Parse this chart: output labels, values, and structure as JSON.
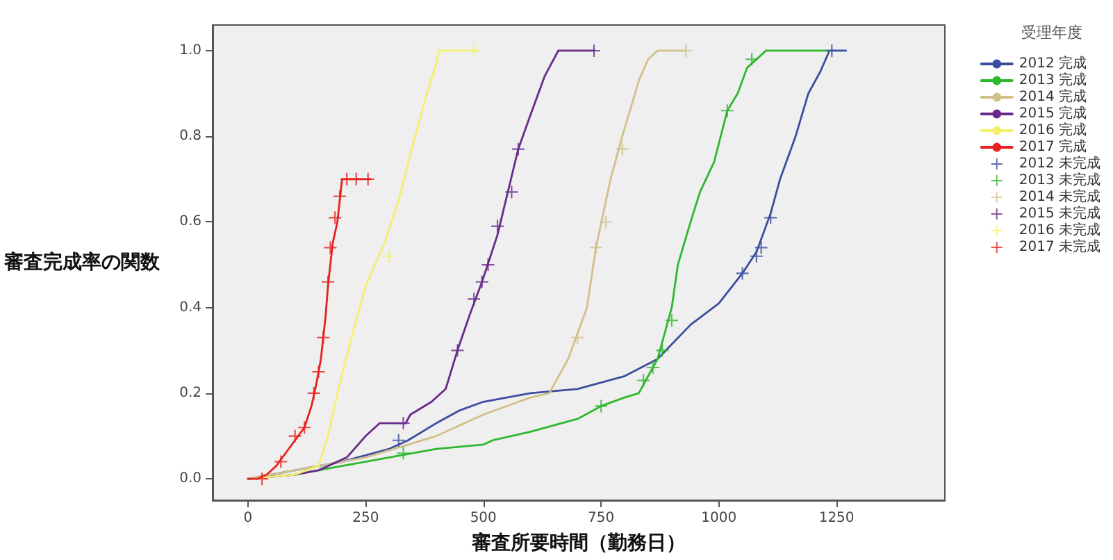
{
  "chart_data": {
    "type": "line",
    "xlabel": "審査所要時間（勤務日）",
    "ylabel": "審査完成率の関数",
    "legend_title": "受理年度",
    "legend": "right",
    "grid": false,
    "xlim": [
      -75,
      1480
    ],
    "xticks": [
      0,
      250,
      500,
      750,
      1000,
      1250
    ],
    "ylim": [
      -0.05,
      1.06
    ],
    "yticks": [
      {
        "value": 0,
        "label": "0.0"
      },
      {
        "value": 0.2,
        "label": "0.2"
      },
      {
        "value": 0.4,
        "label": "0.4"
      },
      {
        "value": 0.6,
        "label": "0.6"
      },
      {
        "value": 0.8,
        "label": "0.8"
      },
      {
        "value": 1,
        "label": "1.0"
      }
    ],
    "series": [
      {
        "name": "2012 完成",
        "color": "#3b4da0",
        "x": [
          0,
          100,
          200,
          300,
          340,
          400,
          450,
          500,
          600,
          700,
          800,
          870,
          940,
          1000,
          1050,
          1080,
          1110,
          1130,
          1163,
          1190,
          1215,
          1235,
          1270
        ],
        "values": [
          0,
          0.02,
          0.04,
          0.07,
          0.09,
          0.13,
          0.16,
          0.18,
          0.2,
          0.21,
          0.24,
          0.28,
          0.36,
          0.41,
          0.48,
          0.53,
          0.62,
          0.7,
          0.8,
          0.9,
          0.95,
          1.0,
          1.0
        ]
      },
      {
        "name": "2013 完成",
        "color": "#2eb82e",
        "x": [
          0,
          100,
          200,
          300,
          400,
          500,
          520,
          600,
          700,
          750,
          800,
          830,
          850,
          870,
          880,
          900,
          913,
          940,
          960,
          990,
          1018,
          1040,
          1060,
          1100,
          1235
        ],
        "values": [
          0,
          0.01,
          0.03,
          0.05,
          0.07,
          0.08,
          0.09,
          0.11,
          0.14,
          0.17,
          0.19,
          0.2,
          0.24,
          0.28,
          0.32,
          0.4,
          0.5,
          0.6,
          0.67,
          0.74,
          0.86,
          0.9,
          0.96,
          1.0,
          1.0
        ]
      },
      {
        "name": "2014 完成",
        "color": "#d2c08a",
        "x": [
          0,
          250,
          400,
          500,
          600,
          640,
          680,
          720,
          739,
          770,
          795,
          830,
          850,
          870,
          930
        ],
        "values": [
          0,
          0.05,
          0.1,
          0.15,
          0.19,
          0.2,
          0.28,
          0.4,
          0.54,
          0.7,
          0.8,
          0.93,
          0.98,
          1.0,
          1.0
        ]
      },
      {
        "name": "2015 完成",
        "color": "#6a2a8a",
        "x": [
          0,
          100,
          150,
          210,
          250,
          280,
          335,
          345,
          390,
          420,
          445,
          470,
          497,
          530,
          574,
          600,
          630,
          659,
          735
        ],
        "values": [
          0,
          0.01,
          0.02,
          0.05,
          0.1,
          0.13,
          0.13,
          0.15,
          0.18,
          0.21,
          0.3,
          0.38,
          0.46,
          0.57,
          0.77,
          0.85,
          0.94,
          1.0,
          1.0
        ]
      },
      {
        "name": "2016 完成",
        "color": "#f5f06a",
        "x": [
          0,
          100,
          150,
          170,
          190,
          220,
          250,
          290,
          320,
          350,
          380,
          400,
          405,
          490
        ],
        "values": [
          0,
          0.01,
          0.03,
          0.1,
          0.2,
          0.33,
          0.45,
          0.55,
          0.65,
          0.78,
          0.9,
          0.97,
          1.0,
          1.0
        ]
      },
      {
        "name": "2017 完成",
        "color": "#e82020",
        "x": [
          0,
          20,
          40,
          60,
          80,
          100,
          120,
          135,
          145,
          155,
          165,
          170,
          180,
          190,
          200,
          260
        ],
        "values": [
          0,
          0,
          0.01,
          0.03,
          0.06,
          0.09,
          0.12,
          0.17,
          0.22,
          0.28,
          0.38,
          0.45,
          0.55,
          0.6,
          0.7,
          0.7
        ]
      },
      {
        "name": "2012 未完成",
        "type": "scatter",
        "marker": "cross",
        "color": "#3b4da0",
        "x": [
          320,
          1050,
          1080,
          1090,
          1110,
          1240
        ],
        "values": [
          0.09,
          0.48,
          0.52,
          0.54,
          0.61,
          1.0
        ]
      },
      {
        "name": "2013 未完成",
        "type": "scatter",
        "marker": "cross",
        "color": "#2eb82e",
        "x": [
          330,
          750,
          840,
          860,
          880,
          900,
          1018,
          1070
        ],
        "values": [
          0.06,
          0.17,
          0.23,
          0.26,
          0.3,
          0.37,
          0.86,
          0.98
        ]
      },
      {
        "name": "2014 未完成",
        "type": "scatter",
        "marker": "cross",
        "color": "#d2c08a",
        "x": [
          700,
          739,
          760,
          795,
          930
        ],
        "values": [
          0.33,
          0.54,
          0.6,
          0.77,
          1.0
        ]
      },
      {
        "name": "2015 未完成",
        "type": "scatter",
        "marker": "cross",
        "color": "#6a2a8a",
        "x": [
          330,
          445,
          480,
          497,
          510,
          530,
          560,
          574,
          735
        ],
        "values": [
          0.13,
          0.3,
          0.42,
          0.46,
          0.5,
          0.59,
          0.67,
          0.77,
          1.0
        ]
      },
      {
        "name": "2016 未完成",
        "type": "scatter",
        "marker": "cross",
        "color": "#f5f06a",
        "x": [
          300,
          480
        ],
        "values": [
          0.52,
          1.0
        ]
      },
      {
        "name": "2017 未完成",
        "type": "scatter",
        "marker": "cross",
        "color": "#e82020",
        "x": [
          30,
          70,
          100,
          120,
          140,
          150,
          160,
          170,
          175,
          185,
          195,
          210,
          230,
          255
        ],
        "values": [
          0,
          0.04,
          0.1,
          0.12,
          0.2,
          0.25,
          0.33,
          0.46,
          0.54,
          0.61,
          0.66,
          0.7,
          0.7,
          0.7
        ]
      }
    ]
  }
}
